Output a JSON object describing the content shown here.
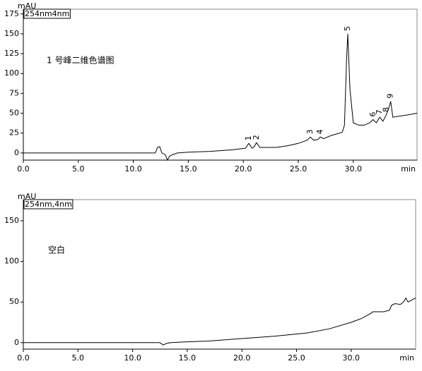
{
  "chart_data": [
    {
      "type": "line",
      "y_label": "mAU",
      "x_label": "min",
      "method": "254nm4nm",
      "note": "1 号峰二维色谱图",
      "x": [
        0,
        12.0,
        12.2,
        12.4,
        12.6,
        12.9,
        13.1,
        13.3,
        13.6,
        14,
        15,
        17,
        19,
        20.2,
        20.5,
        20.8,
        21.0,
        21.2,
        21.5,
        22,
        23,
        24,
        25,
        25.8,
        26.1,
        26.4,
        26.8,
        27.0,
        27.3,
        28,
        29,
        29.2,
        29.4,
        29.5,
        29.7,
        30.0,
        30.5,
        31,
        31.5,
        31.8,
        32.1,
        32.4,
        32.7,
        33.0,
        33.2,
        33.4,
        33.6,
        34,
        35,
        35.8
      ],
      "series": [
        {
          "name": "1 号峰",
          "color": "#000000",
          "values": [
            0,
            0,
            7,
            8,
            0,
            -2,
            -9,
            -4,
            -2,
            0,
            1,
            2,
            4,
            6,
            12,
            6,
            8,
            13,
            7,
            7,
            7,
            9,
            12,
            16,
            20,
            16,
            17,
            20,
            18,
            22,
            26,
            35,
            120,
            150,
            80,
            38,
            35,
            35,
            38,
            42,
            38,
            45,
            40,
            48,
            55,
            65,
            45,
            46,
            48,
            50
          ]
        }
      ],
      "peaks": [
        {
          "label": "1",
          "x": 20.5,
          "y": 12
        },
        {
          "label": "2",
          "x": 21.2,
          "y": 13
        },
        {
          "label": "3",
          "x": 26.1,
          "y": 20
        },
        {
          "label": "4",
          "x": 27.0,
          "y": 20
        },
        {
          "label": "5",
          "x": 29.5,
          "y": 150
        },
        {
          "label": "6",
          "x": 31.8,
          "y": 42
        },
        {
          "label": "7",
          "x": 32.4,
          "y": 45
        },
        {
          "label": "8",
          "x": 33.0,
          "y": 48
        },
        {
          "label": "9",
          "x": 33.4,
          "y": 65
        }
      ],
      "xlim": [
        0,
        35.8
      ],
      "ylim": [
        -9,
        181
      ],
      "xticks": [
        {
          "value": 0,
          "label": "0.0"
        },
        {
          "value": 5,
          "label": "5.0"
        },
        {
          "value": 10,
          "label": "10.0"
        },
        {
          "value": 15,
          "label": "15.0"
        },
        {
          "value": 20,
          "label": "20.0"
        },
        {
          "value": 25,
          "label": "25.0"
        },
        {
          "value": 30,
          "label": "30.0"
        }
      ],
      "yticks": [
        0,
        25,
        50,
        75,
        100,
        125,
        150,
        175
      ]
    },
    {
      "type": "line",
      "y_label": "mAU",
      "x_label": "min",
      "method": "254nm,4nm",
      "note": "空白",
      "x": [
        0,
        12.5,
        12.8,
        13.1,
        13.5,
        15,
        17,
        20,
        23,
        26,
        28,
        30,
        31,
        31.8,
        32.0,
        33,
        33.5,
        33.7,
        34,
        34.5,
        34.8,
        35.0,
        35.2,
        35.9
      ],
      "series": [
        {
          "name": "空白",
          "color": "#000000",
          "values": [
            0,
            0,
            -3,
            -1,
            0,
            1,
            2,
            5,
            8,
            12,
            17,
            25,
            30,
            36,
            38,
            38,
            40,
            46,
            48,
            47,
            50,
            55,
            50,
            55
          ]
        }
      ],
      "xlim": [
        0,
        35.9
      ],
      "ylim": [
        -8,
        176
      ],
      "xticks": [
        {
          "value": 0,
          "label": "0.0"
        },
        {
          "value": 5,
          "label": "5.0"
        },
        {
          "value": 10,
          "label": "10.0"
        },
        {
          "value": 15,
          "label": "15.0"
        },
        {
          "value": 20,
          "label": "20.0"
        },
        {
          "value": 25,
          "label": "25.0"
        },
        {
          "value": 30,
          "label": "30.0"
        }
      ],
      "yticks": [
        0,
        50,
        100,
        150
      ]
    }
  ]
}
